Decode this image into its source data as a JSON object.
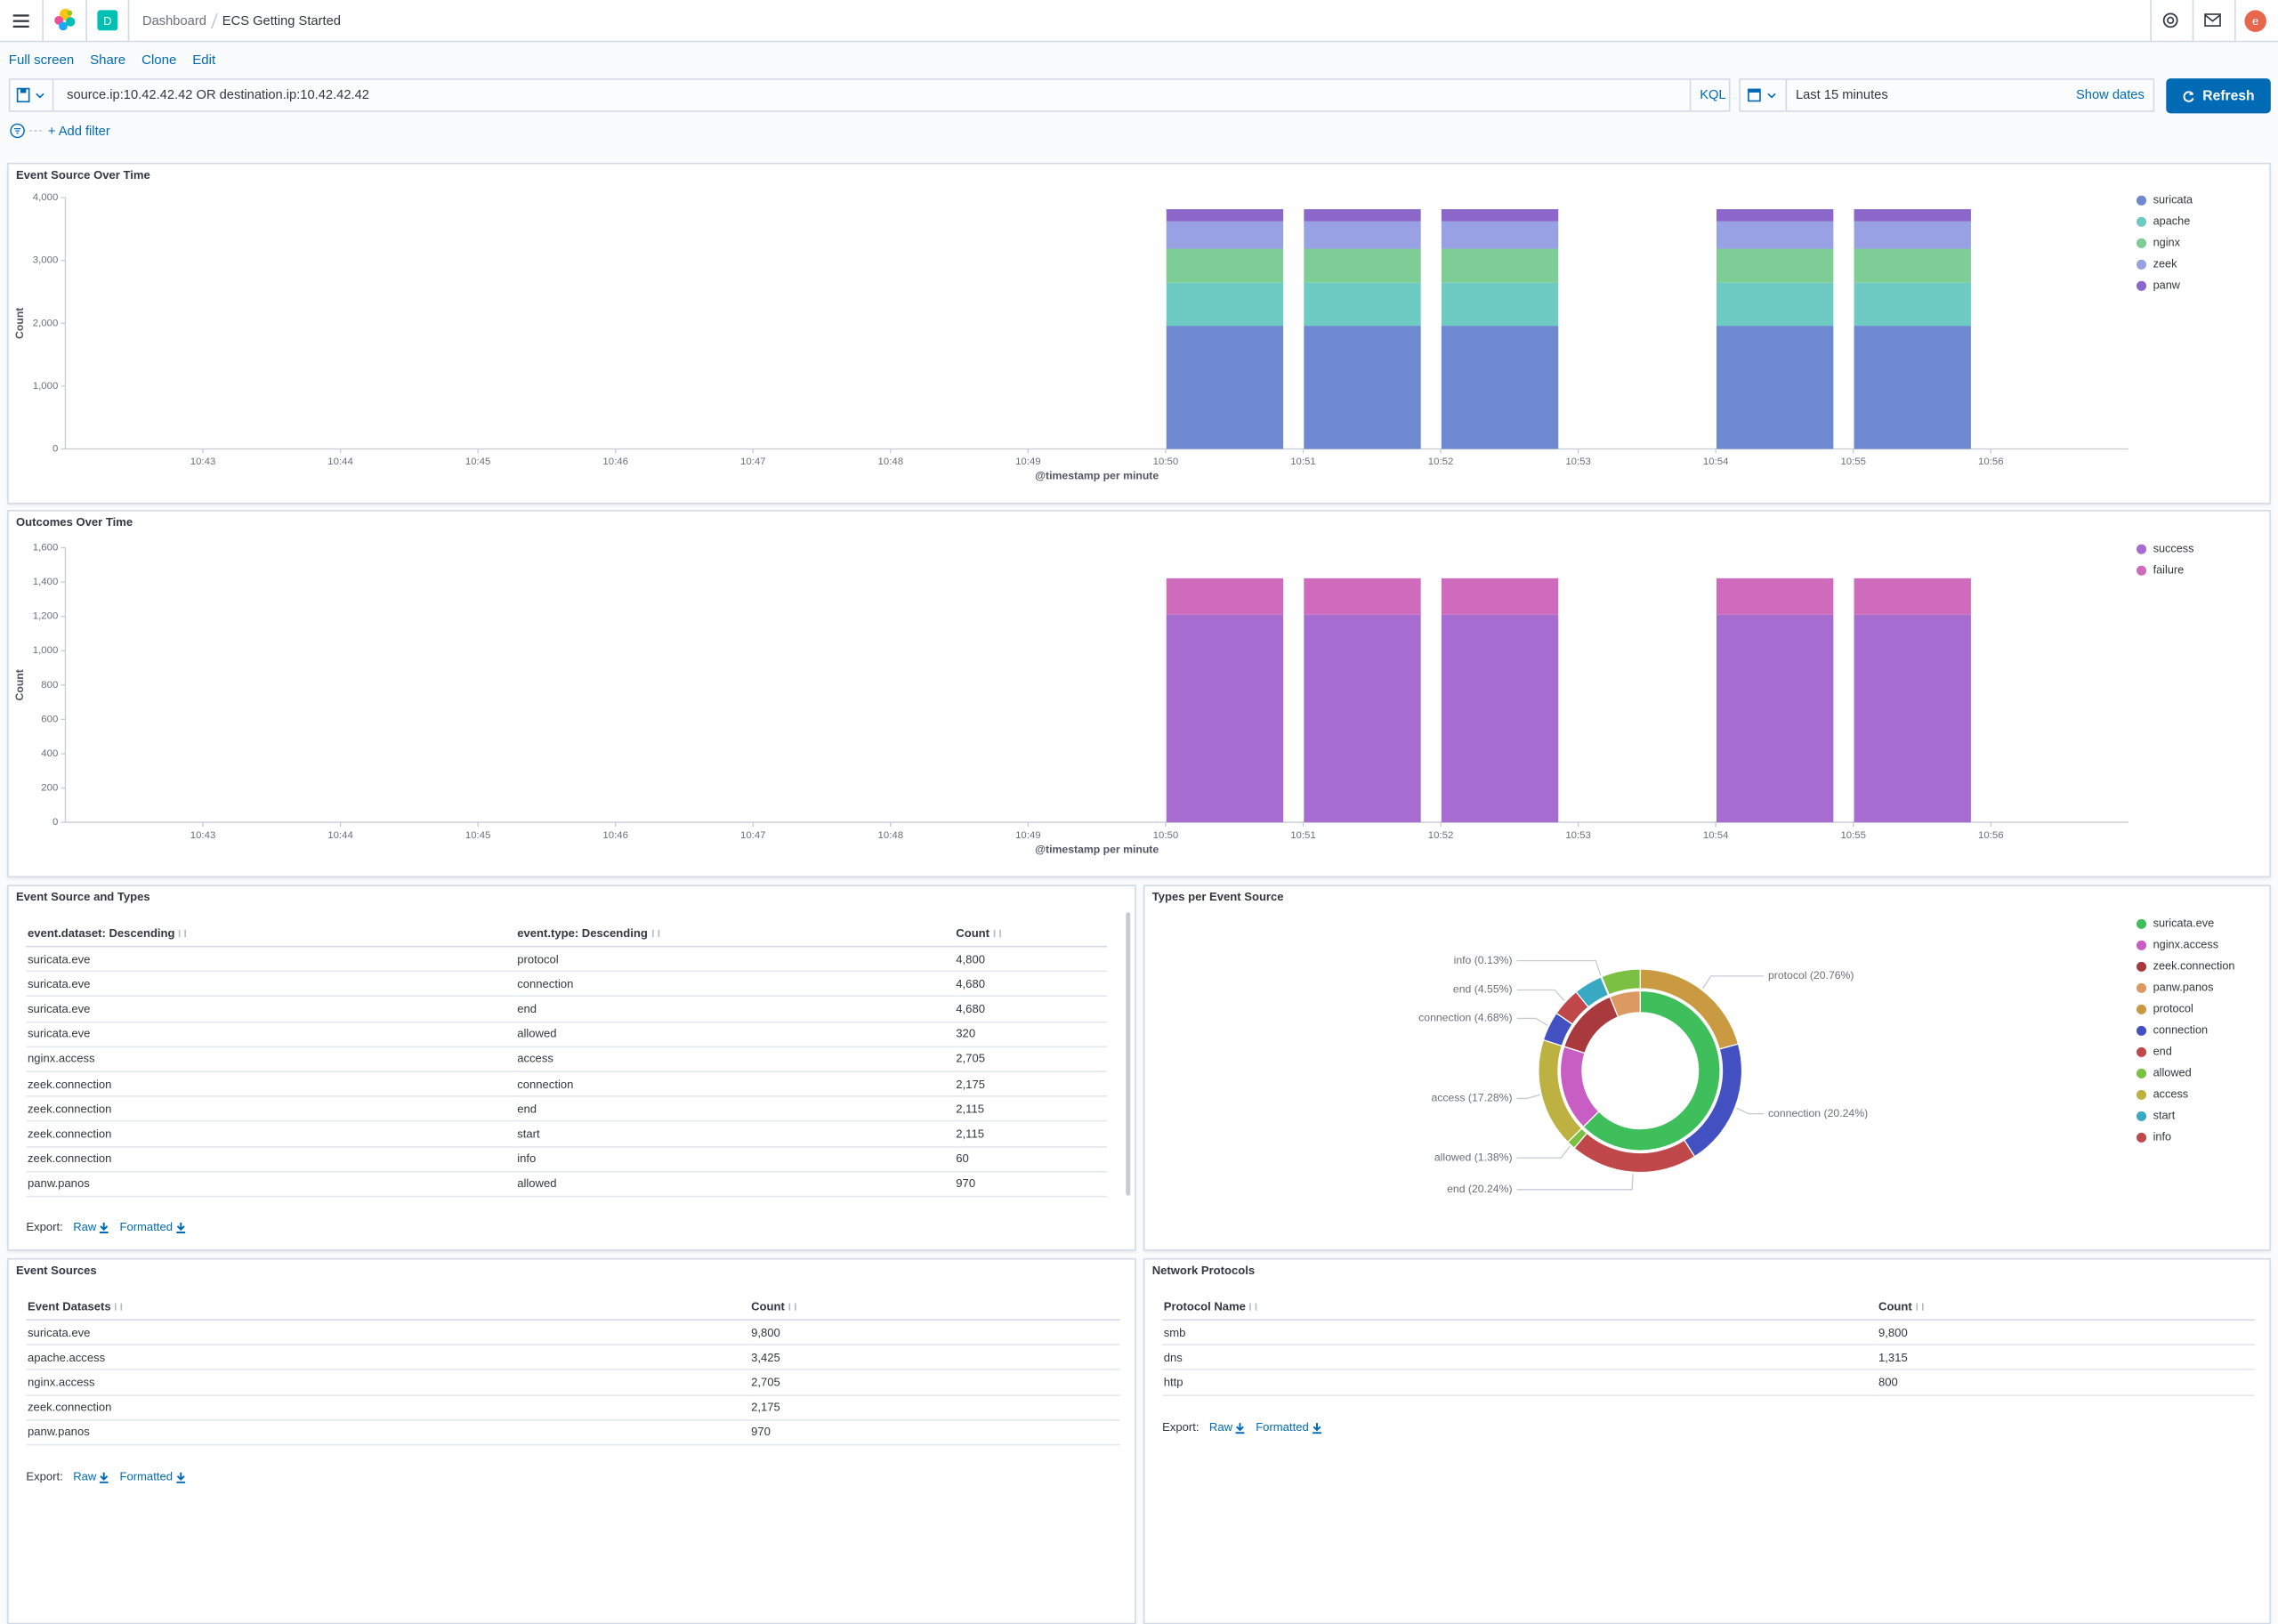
{
  "header": {
    "breadcrumbs": [
      "Dashboard",
      "ECS Getting Started"
    ],
    "space_avatar": "D",
    "user_avatar": "e"
  },
  "top_menu": [
    "Full screen",
    "Share",
    "Clone",
    "Edit"
  ],
  "query_bar": {
    "query": "source.ip:10.42.42.42 OR destination.ip:10.42.42.42",
    "language": "KQL",
    "time_range": "Last 15 minutes",
    "show_dates": "Show dates",
    "refresh": "Refresh"
  },
  "filter_bar": {
    "add_filter": "+ Add filter"
  },
  "chart_data": [
    {
      "type": "bar",
      "stacked": true,
      "title": "Event Source Over Time",
      "xlabel": "@timestamp per minute",
      "ylabel": "Count",
      "categories": [
        null,
        "10:43",
        "10:44",
        "10:45",
        "10:46",
        "10:47",
        "10:48",
        "10:49",
        "10:50",
        "10:51",
        "10:52",
        "10:53",
        "10:54",
        "10:55",
        "10:56"
      ],
      "series": [
        {
          "name": "suricata",
          "color": "#6f89d1",
          "values": [
            null,
            null,
            null,
            null,
            null,
            null,
            null,
            null,
            1960,
            1960,
            1960,
            null,
            1960,
            1960,
            null
          ]
        },
        {
          "name": "apache",
          "color": "#6dcbc4",
          "values": [
            null,
            null,
            null,
            null,
            null,
            null,
            null,
            null,
            685,
            685,
            685,
            null,
            685,
            685,
            null
          ]
        },
        {
          "name": "nginx",
          "color": "#7fcd96",
          "values": [
            null,
            null,
            null,
            null,
            null,
            null,
            null,
            null,
            541,
            541,
            541,
            null,
            541,
            541,
            null
          ]
        },
        {
          "name": "zeek",
          "color": "#97a1e3",
          "values": [
            null,
            null,
            null,
            null,
            null,
            null,
            null,
            null,
            435,
            435,
            435,
            null,
            435,
            435,
            null
          ]
        },
        {
          "name": "panw",
          "color": "#8a67c8",
          "values": [
            null,
            null,
            null,
            null,
            null,
            null,
            null,
            null,
            194,
            194,
            194,
            null,
            194,
            194,
            null
          ]
        }
      ],
      "ylim": [
        0,
        4000
      ],
      "yticks": [
        0,
        {
          "value": 1000,
          "label": "1,000"
        },
        {
          "value": 2000,
          "label": "2,000"
        },
        {
          "value": 3000,
          "label": "3,000"
        },
        {
          "value": 4000,
          "label": "4,000"
        }
      ],
      "grid": false,
      "legend": "right"
    },
    {
      "type": "bar",
      "stacked": true,
      "title": "Outcomes Over Time",
      "xlabel": "@timestamp per minute",
      "ylabel": "Count",
      "categories": [
        null,
        "10:43",
        "10:44",
        "10:45",
        "10:46",
        "10:47",
        "10:48",
        "10:49",
        "10:50",
        "10:51",
        "10:52",
        "10:53",
        "10:54",
        "10:55",
        "10:56"
      ],
      "series": [
        {
          "name": "success",
          "color": "#a66ccf",
          "values": [
            null,
            null,
            null,
            null,
            null,
            null,
            null,
            null,
            1210,
            1210,
            1210,
            null,
            1210,
            1210,
            null
          ]
        },
        {
          "name": "failure",
          "color": "#cf6bbd",
          "values": [
            null,
            null,
            null,
            null,
            null,
            null,
            null,
            null,
            212,
            212,
            212,
            null,
            212,
            212,
            null
          ]
        }
      ],
      "ylim": [
        0,
        1600
      ],
      "yticks": [
        0,
        200,
        400,
        600,
        800,
        {
          "value": 1000,
          "label": "1,000"
        },
        {
          "value": 1200,
          "label": "1,200"
        },
        {
          "value": 1400,
          "label": "1,400"
        },
        {
          "value": 1600,
          "label": "1,600"
        }
      ],
      "grid": false,
      "legend": "right"
    },
    {
      "type": "pie",
      "donut": true,
      "title": "Types per Event Source",
      "inner": {
        "categories": [
          "suricata.eve",
          "nginx.access",
          "zeek.connection",
          "panw.panos"
        ],
        "colors": [
          "#3fbf5c",
          "#c85ec4",
          "#a8393c",
          "#dc9a62"
        ],
        "values": [
          62.62,
          17.28,
          13.91,
          6.19
        ]
      },
      "outer": {
        "categories": [
          "protocol",
          "connection",
          "end",
          "allowed",
          "access",
          "connection",
          "end",
          "start",
          "info",
          "allowed"
        ],
        "colors": [
          "#c99a42",
          "#4250c2",
          "#c1484a",
          "#7cc043",
          "#bdb142",
          "#4250c2",
          "#c1484a",
          "#39a8c2",
          "#c1484a",
          "#7cc043"
        ],
        "values": [
          20.76,
          20.24,
          20.24,
          1.38,
          17.28,
          4.68,
          4.55,
          4.55,
          0.13,
          6.19
        ],
        "value_labels": [
          "protocol (20.76%)",
          "connection (20.24%)",
          "end (20.24%)",
          "allowed (1.38%)",
          "access (17.28%)",
          "connection (4.68%)",
          "end (4.55%)",
          null,
          "info (0.13%)",
          null
        ]
      },
      "legend": [
        {
          "name": "suricata.eve",
          "color": "#3fbf5c"
        },
        {
          "name": "nginx.access",
          "color": "#c85ec4"
        },
        {
          "name": "zeek.connection",
          "color": "#a8393c"
        },
        {
          "name": "panw.panos",
          "color": "#dc9a62"
        },
        {
          "name": "protocol",
          "color": "#c99a42"
        },
        {
          "name": "connection",
          "color": "#4250c2"
        },
        {
          "name": "end",
          "color": "#c1484a"
        },
        {
          "name": "allowed",
          "color": "#7cc043"
        },
        {
          "name": "access",
          "color": "#bdb142"
        },
        {
          "name": "start",
          "color": "#39a8c2"
        },
        {
          "name": "info",
          "color": "#c1484a"
        }
      ]
    }
  ],
  "tables": [
    {
      "title": "Event Source and Types",
      "columns": [
        "event.dataset: Descending",
        "event.type: Descending",
        "Count"
      ],
      "rows": [
        [
          "suricata.eve",
          "protocol",
          "4,800"
        ],
        [
          "suricata.eve",
          "connection",
          "4,680"
        ],
        [
          "suricata.eve",
          "end",
          "4,680"
        ],
        [
          "suricata.eve",
          "allowed",
          "320"
        ],
        [
          "nginx.access",
          "access",
          "2,705"
        ],
        [
          "zeek.connection",
          "connection",
          "2,175"
        ],
        [
          "zeek.connection",
          "end",
          "2,115"
        ],
        [
          "zeek.connection",
          "start",
          "2,115"
        ],
        [
          "zeek.connection",
          "info",
          "60"
        ],
        [
          "panw.panos",
          "allowed",
          "970"
        ]
      ],
      "export": {
        "label": "Export:",
        "raw": "Raw",
        "formatted": "Formatted"
      }
    },
    {
      "title": "Event Sources",
      "columns": [
        "Event Datasets",
        "Count"
      ],
      "rows": [
        [
          "suricata.eve",
          "9,800"
        ],
        [
          "apache.access",
          "3,425"
        ],
        [
          "nginx.access",
          "2,705"
        ],
        [
          "zeek.connection",
          "2,175"
        ],
        [
          "panw.panos",
          "970"
        ]
      ],
      "export": {
        "label": "Export:",
        "raw": "Raw",
        "formatted": "Formatted"
      }
    },
    {
      "title": "Network Protocols",
      "columns": [
        "Protocol Name",
        "Count"
      ],
      "rows": [
        [
          "smb",
          "9,800"
        ],
        [
          "dns",
          "1,315"
        ],
        [
          "http",
          "800"
        ]
      ],
      "export": {
        "label": "Export:",
        "raw": "Raw",
        "formatted": "Formatted"
      }
    }
  ]
}
